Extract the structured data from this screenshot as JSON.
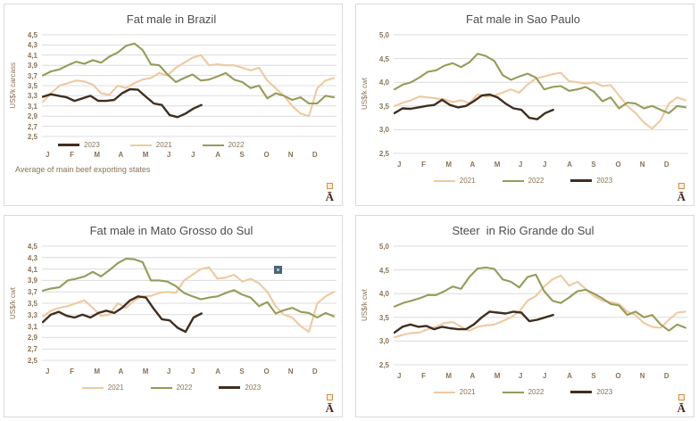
{
  "logo": {
    "glyph": "Ā"
  },
  "colors": {
    "background": "#FFFFFF",
    "panel_border": "#D9D9D9",
    "gridline": "#DCDCDC",
    "title_text": "#4D4D4D",
    "axis_text": "#8A7358",
    "series_2021": "#EFC9A0",
    "series_2022": "#959B59",
    "series_2023": "#3F2E20",
    "logo_text": "#46281C",
    "logo_square_border": "#D78E3F",
    "marker_outer": "#4E6472",
    "marker_inner": "#8FC3D9"
  },
  "months": [
    "J",
    "F",
    "M",
    "A",
    "M",
    "J",
    "J",
    "A",
    "S",
    "O",
    "N",
    "D"
  ],
  "chart_data": [
    {
      "type": "line",
      "title": "Fat male in Brazil",
      "ylabel": "US$/k carcass",
      "ylim": [
        2.5,
        4.5
      ],
      "yticks": [
        4.5,
        4.3,
        4.1,
        3.9,
        3.7,
        3.5,
        3.3,
        3.1,
        2.9,
        2.7,
        2.5
      ],
      "ytick_labels": [
        "4,5",
        "4,3",
        "4,1",
        "3,9",
        "3,7",
        "3,5",
        "3,3",
        "3,1",
        "2,9",
        "2,7",
        "2,5"
      ],
      "x_categories": [
        "J",
        "F",
        "M",
        "A",
        "M",
        "J",
        "J",
        "A",
        "S",
        "O",
        "N",
        "D"
      ],
      "legend_order": [
        "2023",
        "2021",
        "2022"
      ],
      "legend_position": "inside-bottom-left",
      "footnote": "Average  of main  beef exporting states",
      "grid": "horizontal",
      "series": [
        {
          "name": "2021",
          "x_span": 1.0,
          "values": [
            3.18,
            3.35,
            3.5,
            3.55,
            3.6,
            3.58,
            3.52,
            3.35,
            3.32,
            3.5,
            3.45,
            3.55,
            3.62,
            3.65,
            3.75,
            3.7,
            3.85,
            3.95,
            4.05,
            4.1,
            3.9,
            3.92,
            3.9,
            3.9,
            3.85,
            3.8,
            3.85,
            3.6,
            3.45,
            3.3,
            3.1,
            2.95,
            2.9,
            3.45,
            3.6,
            3.65
          ]
        },
        {
          "name": "2022",
          "x_span": 1.0,
          "values": [
            3.7,
            3.78,
            3.82,
            3.9,
            3.97,
            3.93,
            4.0,
            3.95,
            4.07,
            4.15,
            4.28,
            4.33,
            4.2,
            3.92,
            3.9,
            3.72,
            3.57,
            3.65,
            3.72,
            3.6,
            3.62,
            3.68,
            3.75,
            3.62,
            3.57,
            3.45,
            3.5,
            3.25,
            3.35,
            3.3,
            3.22,
            3.27,
            3.15,
            3.15,
            3.3,
            3.27
          ]
        },
        {
          "name": "2023",
          "x_span": 0.545,
          "values": [
            3.28,
            3.33,
            3.3,
            3.27,
            3.2,
            3.25,
            3.3,
            3.2,
            3.2,
            3.22,
            3.35,
            3.43,
            3.42,
            3.28,
            3.15,
            3.12,
            2.92,
            2.88,
            2.95,
            3.05,
            3.12
          ]
        }
      ]
    },
    {
      "type": "line",
      "title": "Fat male in Sao Paulo",
      "ylabel": "US$/k cwt",
      "ylim": [
        2.5,
        5.0
      ],
      "yticks": [
        5.0,
        4.5,
        4.0,
        3.5,
        3.0,
        2.5
      ],
      "ytick_labels": [
        "5,0",
        "4,5",
        "4,0",
        "3,5",
        "3,0",
        "2,5"
      ],
      "x_categories": [
        "J",
        "F",
        "M",
        "A",
        "M",
        "J",
        "J",
        "A",
        "S",
        "O",
        "N",
        "D"
      ],
      "legend_order": [
        "2021",
        "2022",
        "2023"
      ],
      "legend_position": "bottom-center",
      "grid": "horizontal",
      "series": [
        {
          "name": "2021",
          "x_span": 1.0,
          "values": [
            3.5,
            3.57,
            3.62,
            3.7,
            3.68,
            3.66,
            3.64,
            3.58,
            3.62,
            3.56,
            3.74,
            3.7,
            3.72,
            3.78,
            3.85,
            3.78,
            3.95,
            4.08,
            4.12,
            4.17,
            4.2,
            4.02,
            4.0,
            3.97,
            4.0,
            3.92,
            3.94,
            3.72,
            3.5,
            3.35,
            3.15,
            3.02,
            3.2,
            3.55,
            3.68,
            3.62
          ]
        },
        {
          "name": "2022",
          "x_span": 1.0,
          "values": [
            3.85,
            3.95,
            4.0,
            4.1,
            4.22,
            4.25,
            4.35,
            4.4,
            4.32,
            4.42,
            4.6,
            4.55,
            4.45,
            4.15,
            4.05,
            4.12,
            4.18,
            4.1,
            3.85,
            3.9,
            3.92,
            3.82,
            3.85,
            3.9,
            3.8,
            3.6,
            3.68,
            3.45,
            3.57,
            3.55,
            3.45,
            3.5,
            3.42,
            3.35,
            3.5,
            3.47
          ]
        },
        {
          "name": "2023",
          "x_span": 0.545,
          "values": [
            3.35,
            3.45,
            3.44,
            3.47,
            3.5,
            3.52,
            3.63,
            3.52,
            3.47,
            3.5,
            3.6,
            3.72,
            3.74,
            3.68,
            3.55,
            3.45,
            3.42,
            3.25,
            3.22,
            3.35,
            3.42
          ]
        }
      ]
    },
    {
      "type": "line",
      "title": "Fat male in Mato Grosso do Sul",
      "ylabel": "US$/k cwt",
      "ylim": [
        2.5,
        4.5
      ],
      "yticks": [
        4.5,
        4.3,
        4.1,
        3.9,
        3.7,
        3.5,
        3.3,
        3.1,
        2.9,
        2.7,
        2.5
      ],
      "ytick_labels": [
        "4,5",
        "4,3",
        "4,1",
        "3,9",
        "3,7",
        "3,5",
        "3,3",
        "3,1",
        "2,9",
        "2,7",
        "2,5"
      ],
      "x_categories": [
        "J",
        "F",
        "M",
        "A",
        "M",
        "J",
        "J",
        "A",
        "S",
        "O",
        "N",
        "D"
      ],
      "legend_order": [
        "2021",
        "2022",
        "2023"
      ],
      "legend_position": "bottom-center",
      "grid": "horizontal",
      "stray_marker": {
        "x_fraction": 0.8,
        "value": 4.1
      },
      "series": [
        {
          "name": "2021",
          "x_span": 1.0,
          "values": [
            3.27,
            3.37,
            3.42,
            3.45,
            3.5,
            3.55,
            3.42,
            3.28,
            3.3,
            3.5,
            3.42,
            3.55,
            3.62,
            3.63,
            3.68,
            3.7,
            3.68,
            3.9,
            4.0,
            4.1,
            4.13,
            3.93,
            3.95,
            4.0,
            3.88,
            3.93,
            3.85,
            3.7,
            3.45,
            3.3,
            3.25,
            3.1,
            3.0,
            3.5,
            3.62,
            3.7
          ]
        },
        {
          "name": "2022",
          "x_span": 1.0,
          "values": [
            3.72,
            3.76,
            3.78,
            3.9,
            3.93,
            3.97,
            4.05,
            3.97,
            4.08,
            4.2,
            4.28,
            4.27,
            4.22,
            3.9,
            3.9,
            3.88,
            3.8,
            3.68,
            3.62,
            3.57,
            3.6,
            3.62,
            3.68,
            3.73,
            3.65,
            3.6,
            3.45,
            3.52,
            3.32,
            3.38,
            3.42,
            3.35,
            3.33,
            3.25,
            3.33,
            3.27
          ]
        },
        {
          "name": "2023",
          "x_span": 0.545,
          "values": [
            3.17,
            3.3,
            3.35,
            3.28,
            3.25,
            3.3,
            3.25,
            3.33,
            3.37,
            3.33,
            3.42,
            3.55,
            3.62,
            3.6,
            3.4,
            3.22,
            3.2,
            3.07,
            3.0,
            3.25,
            3.32
          ]
        }
      ]
    },
    {
      "type": "line",
      "title": "Steer  in Rio Grande do Sul",
      "ylabel": "US$/k cwt",
      "ylim": [
        2.5,
        5.0
      ],
      "yticks": [
        5.0,
        4.5,
        4.0,
        3.5,
        3.0,
        2.5
      ],
      "ytick_labels": [
        "5,0",
        "4,5",
        "4,0",
        "3,5",
        "3,0",
        "2,5"
      ],
      "x_categories": [
        "J",
        "F",
        "M",
        "A",
        "M",
        "J",
        "J",
        "A",
        "S",
        "O",
        "N",
        "D"
      ],
      "legend_order": [
        "2021",
        "2022",
        "2023"
      ],
      "legend_position": "bottom-center",
      "grid": "horizontal",
      "series": [
        {
          "name": "2021",
          "x_span": 1.0,
          "values": [
            3.08,
            3.13,
            3.17,
            3.18,
            3.25,
            3.3,
            3.38,
            3.4,
            3.3,
            3.22,
            3.3,
            3.33,
            3.35,
            3.42,
            3.5,
            3.62,
            3.85,
            3.95,
            4.15,
            4.3,
            4.38,
            4.17,
            4.25,
            4.1,
            3.95,
            3.85,
            3.82,
            3.78,
            3.62,
            3.55,
            3.38,
            3.3,
            3.28,
            3.45,
            3.6,
            3.62
          ]
        },
        {
          "name": "2022",
          "x_span": 1.0,
          "values": [
            3.73,
            3.8,
            3.85,
            3.9,
            3.97,
            3.97,
            4.05,
            4.15,
            4.1,
            4.35,
            4.53,
            4.55,
            4.52,
            4.3,
            4.25,
            4.13,
            4.35,
            4.4,
            4.05,
            3.85,
            3.8,
            3.92,
            4.05,
            4.08,
            4.0,
            3.9,
            3.78,
            3.75,
            3.55,
            3.62,
            3.5,
            3.55,
            3.35,
            3.22,
            3.35,
            3.28
          ]
        },
        {
          "name": "2023",
          "x_span": 0.545,
          "values": [
            3.18,
            3.3,
            3.35,
            3.3,
            3.32,
            3.25,
            3.3,
            3.27,
            3.25,
            3.25,
            3.35,
            3.5,
            3.62,
            3.6,
            3.58,
            3.62,
            3.6,
            3.42,
            3.45,
            3.5,
            3.55
          ]
        }
      ]
    }
  ]
}
